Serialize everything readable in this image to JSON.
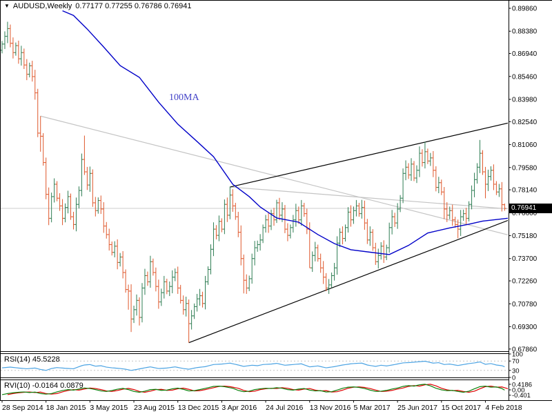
{
  "window": {
    "symbol_period": "AUDUSD,Weekly",
    "quote_text": "0.77177 0.77255 0.76786 0.76941"
  },
  "colors": {
    "background": "#FFFFFF",
    "border": "#000000",
    "bar_up": "#2E7D53",
    "bar_down": "#DF572B",
    "ma_line": "#0000C8",
    "ma_label": "#4343C8",
    "gray_line": "#C4C4C4",
    "price_line": "#CCCCCC",
    "trendline_black": "#000000",
    "rsi_line": "#4BA3E3",
    "rsi_level_dash": "#C4C4C4",
    "rvi_main": "#0B800B",
    "rvi_signal": "#DD0000",
    "flag_bg": "#000000",
    "flag_text": "#FFFFFF"
  },
  "chart_data": {
    "type": "ohlc-bar",
    "symbol": "AUDUSD",
    "timeframe": "Weekly",
    "title": "AUDUSD,Weekly 0.77177 0.77255 0.76786 0.76941",
    "current": {
      "open": 0.77177,
      "high": 0.77255,
      "low": 0.76786,
      "close": 0.76941,
      "close_label": "0.76941"
    },
    "price_axis_ticks": [
      "0.89860",
      "0.88380",
      "0.86940",
      "0.85460",
      "0.83980",
      "0.82540",
      "0.81060",
      "0.79580",
      "0.78140",
      "0.76660",
      "0.75180",
      "0.73700",
      "0.72260",
      "0.70780",
      "0.69300",
      "0.67860"
    ],
    "ylim": [
      0.67585,
      0.90395
    ],
    "date_ticks": [
      {
        "label": "28 Sep 2014",
        "bar": 0
      },
      {
        "label": "18 Jan 2015",
        "bar": 16
      },
      {
        "label": "3 May 2015",
        "bar": 32
      },
      {
        "label": "23 Aug 2015",
        "bar": 48
      },
      {
        "label": "13 Dec 2015",
        "bar": 64
      },
      {
        "label": "3 Apr 2016",
        "bar": 80
      },
      {
        "label": "24 Jul 2016",
        "bar": 96
      },
      {
        "label": "13 Nov 2016",
        "bar": 112
      },
      {
        "label": "5 Mar 2017",
        "bar": 128
      },
      {
        "label": "25 Jun 2017",
        "bar": 144
      },
      {
        "label": "15 Oct 2017",
        "bar": 160
      },
      {
        "label": "4 Feb 2018",
        "bar": 176
      }
    ],
    "closes": [
      0.8755,
      0.8805,
      0.8855,
      0.876,
      0.87,
      0.8745,
      0.866,
      0.87,
      0.862,
      0.856,
      0.8615,
      0.8545,
      0.844,
      0.818,
      0.816,
      0.799,
      0.7785,
      0.763,
      0.777,
      0.785,
      0.776,
      0.771,
      0.763,
      0.77,
      0.777,
      0.764,
      0.759,
      0.772,
      0.781,
      0.801,
      0.793,
      0.7845,
      0.792,
      0.773,
      0.768,
      0.7745,
      0.769,
      0.758,
      0.7525,
      0.746,
      0.741,
      0.745,
      0.7345,
      0.738,
      0.728,
      0.717,
      0.716,
      0.698,
      0.704,
      0.71,
      0.699,
      0.718,
      0.726,
      0.722,
      0.735,
      0.728,
      0.719,
      0.709,
      0.715,
      0.722,
      0.716,
      0.719,
      0.725,
      0.728,
      0.718,
      0.71,
      0.704,
      0.708,
      0.695,
      0.7,
      0.706,
      0.711,
      0.713,
      0.708,
      0.722,
      0.73,
      0.743,
      0.756,
      0.752,
      0.761,
      0.756,
      0.772,
      0.765,
      0.778,
      0.771,
      0.764,
      0.754,
      0.737,
      0.723,
      0.718,
      0.724,
      0.737,
      0.744,
      0.746,
      0.749,
      0.757,
      0.762,
      0.758,
      0.766,
      0.762,
      0.773,
      0.765,
      0.769,
      0.756,
      0.752,
      0.757,
      0.762,
      0.768,
      0.762,
      0.771,
      0.766,
      0.756,
      0.731,
      0.739,
      0.744,
      0.737,
      0.731,
      0.725,
      0.718,
      0.72,
      0.726,
      0.731,
      0.747,
      0.754,
      0.75,
      0.757,
      0.767,
      0.762,
      0.768,
      0.771,
      0.766,
      0.77,
      0.76,
      0.749,
      0.754,
      0.744,
      0.735,
      0.739,
      0.745,
      0.738,
      0.744,
      0.757,
      0.764,
      0.76,
      0.769,
      0.776,
      0.792,
      0.796,
      0.791,
      0.798,
      0.789,
      0.794,
      0.805,
      0.799,
      0.806,
      0.8,
      0.802,
      0.794,
      0.783,
      0.786,
      0.78,
      0.769,
      0.765,
      0.768,
      0.762,
      0.759,
      0.756,
      0.764,
      0.766,
      0.763,
      0.772,
      0.781,
      0.788,
      0.796,
      0.805,
      0.793,
      0.785,
      0.79,
      0.794,
      0.785,
      0.78,
      0.782,
      0.7718,
      0.76941
    ],
    "bar_overrides": {
      "14": {
        "high": 0.829,
        "low": 0.806
      },
      "30": {
        "high": 0.8164
      },
      "46": {
        "low": 0.704
      },
      "47": {
        "low": 0.6896
      },
      "50": {
        "low": 0.6938
      },
      "68": {
        "low": 0.6827
      },
      "83": {
        "high": 0.7835
      },
      "88": {
        "low": 0.7145
      },
      "112": {
        "low": 0.7311
      },
      "118": {
        "low": 0.716
      },
      "131": {
        "high": 0.7749
      },
      "136": {
        "low": 0.7329
      },
      "154": {
        "high": 0.8124
      },
      "161": {
        "low": 0.7625
      },
      "166": {
        "low": 0.7501
      },
      "174": {
        "high": 0.8136
      },
      "176": {
        "low": 0.7759
      },
      "183": {
        "open": 0.77177,
        "high": 0.77255,
        "low": 0.76786,
        "close": 0.76941
      }
    },
    "overlays": {
      "ma": {
        "label": "100MA",
        "points": [
          [
            22,
            0.897
          ],
          [
            26,
            0.894
          ],
          [
            31,
            0.8852
          ],
          [
            37,
            0.8736
          ],
          [
            43,
            0.8616
          ],
          [
            50,
            0.854
          ],
          [
            57,
            0.838
          ],
          [
            64,
            0.8238
          ],
          [
            71,
            0.8126
          ],
          [
            77,
            0.8028
          ],
          [
            84,
            0.785
          ],
          [
            90,
            0.777
          ],
          [
            94,
            0.7703
          ],
          [
            100,
            0.7632
          ],
          [
            108,
            0.7605
          ],
          [
            115,
            0.7525
          ],
          [
            121,
            0.7467
          ],
          [
            127,
            0.7427
          ],
          [
            135,
            0.7409
          ],
          [
            141,
            0.7396
          ],
          [
            148,
            0.7455
          ],
          [
            155,
            0.7535
          ],
          [
            163,
            0.7568
          ],
          [
            170,
            0.7592
          ],
          [
            175,
            0.7612
          ],
          [
            185,
            0.7632
          ]
        ]
      },
      "trendlines": [
        {
          "name": "gray-trendline-upper",
          "color_key": "gray_line",
          "from": [
            14,
            0.829
          ],
          "to": [
            186.4,
            0.7513
          ]
        },
        {
          "name": "gray-trendline-lower",
          "color_key": "gray_line",
          "from": [
            83,
            0.7832
          ],
          "to": [
            186.4,
            0.7688
          ]
        },
        {
          "name": "black-trendline-upper",
          "color_key": "trendline_black",
          "from": [
            83,
            0.7832
          ],
          "to": [
            184.4,
            0.8246
          ]
        },
        {
          "name": "black-trendline-lower",
          "color_key": "trendline_black",
          "from": [
            68,
            0.6827
          ],
          "to": [
            185.2,
            0.7623
          ]
        }
      ],
      "hline": {
        "price": 0.76941
      }
    },
    "indicators": [
      {
        "name": "RSI",
        "label": "RSI(14) 45.5228",
        "last_value": 45.5228,
        "levels": [
          70,
          30
        ],
        "axis_ticks": [
          {
            "label": "100",
            "value": 100
          },
          {
            "label": "70",
            "value": 70
          },
          {
            "label": "30",
            "value": 30
          },
          {
            "label": "0",
            "value": 0
          }
        ],
        "range": [
          0,
          100
        ],
        "anchors": [
          [
            0,
            41
          ],
          [
            3,
            44
          ],
          [
            6,
            40
          ],
          [
            9,
            37
          ],
          [
            12,
            40
          ],
          [
            14,
            34
          ],
          [
            16,
            30
          ],
          [
            18,
            38
          ],
          [
            20,
            42
          ],
          [
            23,
            39
          ],
          [
            26,
            37
          ],
          [
            29,
            50
          ],
          [
            30,
            53
          ],
          [
            32,
            55
          ],
          [
            34,
            48
          ],
          [
            36,
            50
          ],
          [
            38,
            44
          ],
          [
            40,
            41
          ],
          [
            43,
            38
          ],
          [
            45,
            35
          ],
          [
            47,
            30
          ],
          [
            49,
            34
          ],
          [
            52,
            41
          ],
          [
            54,
            45
          ],
          [
            57,
            38
          ],
          [
            60,
            40
          ],
          [
            63,
            45
          ],
          [
            66,
            38
          ],
          [
            68,
            35
          ],
          [
            71,
            42
          ],
          [
            74,
            46
          ],
          [
            77,
            55
          ],
          [
            80,
            57
          ],
          [
            83,
            61
          ],
          [
            86,
            53
          ],
          [
            88,
            47
          ],
          [
            91,
            52
          ],
          [
            93,
            50
          ],
          [
            95,
            55
          ],
          [
            98,
            57
          ],
          [
            100,
            60
          ],
          [
            103,
            52
          ],
          [
            106,
            55
          ],
          [
            109,
            58
          ],
          [
            112,
            45
          ],
          [
            115,
            49
          ],
          [
            118,
            41
          ],
          [
            121,
            46
          ],
          [
            124,
            53
          ],
          [
            127,
            58
          ],
          [
            129,
            60
          ],
          [
            131,
            61
          ],
          [
            133,
            53
          ],
          [
            136,
            47
          ],
          [
            138,
            52
          ],
          [
            140,
            49
          ],
          [
            143,
            55
          ],
          [
            146,
            62
          ],
          [
            149,
            64
          ],
          [
            152,
            67
          ],
          [
            154,
            69
          ],
          [
            157,
            61
          ],
          [
            159,
            63
          ],
          [
            161,
            55
          ],
          [
            163,
            57
          ],
          [
            166,
            51
          ],
          [
            168,
            55
          ],
          [
            170,
            59
          ],
          [
            172,
            62
          ],
          [
            174,
            66
          ],
          [
            176,
            56
          ],
          [
            178,
            59
          ],
          [
            180,
            53
          ],
          [
            182,
            50
          ],
          [
            183,
            45.5
          ]
        ]
      },
      {
        "name": "RVI",
        "label": "RVI(10) -0.0164 0.0879",
        "last_values": [
          -0.0164,
          0.0879
        ],
        "axis_ticks": [
          {
            "label": "0.4186",
            "value": 0.4186
          },
          {
            "label": "0.00",
            "value": 0
          },
          {
            "label": "-0.401",
            "value": -0.401
          }
        ],
        "signal_shift": 2,
        "anchors": [
          [
            0,
            -0.36
          ],
          [
            2,
            -0.28
          ],
          [
            4,
            -0.22
          ],
          [
            6,
            -0.18
          ],
          [
            8,
            -0.16
          ],
          [
            10,
            -0.2
          ],
          [
            12,
            -0.17
          ],
          [
            14,
            -0.28
          ],
          [
            16,
            -0.32
          ],
          [
            18,
            -0.28
          ],
          [
            20,
            -0.15
          ],
          [
            22,
            -0.05
          ],
          [
            24,
            0.02
          ],
          [
            26,
            -0.02
          ],
          [
            28,
            0.06
          ],
          [
            30,
            0.14
          ],
          [
            32,
            0.1
          ],
          [
            34,
            0.02
          ],
          [
            36,
            -0.08
          ],
          [
            38,
            -0.12
          ],
          [
            40,
            -0.05
          ],
          [
            42,
            0.05
          ],
          [
            44,
            0.11
          ],
          [
            46,
            0.02
          ],
          [
            48,
            -0.12
          ],
          [
            50,
            -0.18
          ],
          [
            52,
            -0.1
          ],
          [
            54,
            0.02
          ],
          [
            56,
            0.04
          ],
          [
            58,
            -0.04
          ],
          [
            60,
            -0.02
          ],
          [
            62,
            0.08
          ],
          [
            64,
            0.13
          ],
          [
            66,
            0.04
          ],
          [
            68,
            -0.08
          ],
          [
            70,
            -0.06
          ],
          [
            72,
            0.02
          ],
          [
            75,
            0.16
          ],
          [
            77,
            0.26
          ],
          [
            79,
            0.28
          ],
          [
            81,
            0.24
          ],
          [
            84,
            0.12
          ],
          [
            86,
            -0.04
          ],
          [
            88,
            -0.14
          ],
          [
            90,
            -0.1
          ],
          [
            92,
            0.02
          ],
          [
            94,
            0.08
          ],
          [
            96,
            0.12
          ],
          [
            98,
            0.1
          ],
          [
            100,
            0.16
          ],
          [
            102,
            0.12
          ],
          [
            104,
            0.02
          ],
          [
            106,
            -0.02
          ],
          [
            108,
            0.06
          ],
          [
            110,
            0.1
          ],
          [
            112,
            -0.02
          ],
          [
            114,
            -0.08
          ],
          [
            116,
            -0.06
          ],
          [
            118,
            -0.16
          ],
          [
            120,
            -0.14
          ],
          [
            122,
            -0.02
          ],
          [
            124,
            0.12
          ],
          [
            126,
            0.2
          ],
          [
            128,
            0.22
          ],
          [
            130,
            0.18
          ],
          [
            132,
            0.1
          ],
          [
            134,
            -0.02
          ],
          [
            136,
            -0.12
          ],
          [
            138,
            -0.1
          ],
          [
            140,
            -0.04
          ],
          [
            142,
            0.06
          ],
          [
            144,
            0.14
          ],
          [
            146,
            0.26
          ],
          [
            148,
            0.32
          ],
          [
            150,
            0.28
          ],
          [
            152,
            0.38
          ],
          [
            154,
            0.42
          ],
          [
            156,
            0.3
          ],
          [
            158,
            0.12
          ],
          [
            160,
            0.0
          ],
          [
            162,
            -0.06
          ],
          [
            164,
            -0.04
          ],
          [
            166,
            -0.12
          ],
          [
            168,
            -0.18
          ],
          [
            170,
            -0.1
          ],
          [
            172,
            0.08
          ],
          [
            174,
            0.24
          ],
          [
            176,
            0.28
          ],
          [
            178,
            0.2
          ],
          [
            180,
            0.22
          ],
          [
            182,
            0.1
          ],
          [
            183,
            -0.02
          ]
        ]
      }
    ]
  }
}
